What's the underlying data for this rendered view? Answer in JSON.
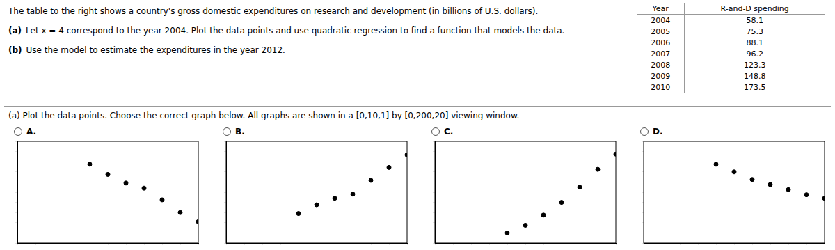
{
  "title": "The table to the right shows a country's gross domestic expenditures on research and development (in billions of U.S. dollars).",
  "annotations": [
    {
      "label": "(a)",
      "text": "Let x = 4 correspond to the year 2004. Plot the data points and use quadratic regression to find a function that models the data."
    },
    {
      "label": "(b)",
      "text": "Use the model to estimate the expenditures in the year 2012."
    },
    {
      "text": "(a) Plot the data points. Choose the correct graph below. All graphs are shown in a [0,10,1] by [0,200,20] viewing window."
    }
  ],
  "table": {
    "header": [
      "Year",
      "R-and-D spending"
    ],
    "rows": [
      [
        2004,
        58.1
      ],
      [
        2005,
        75.3
      ],
      [
        2006,
        88.1
      ],
      [
        2007,
        96.2
      ],
      [
        2008,
        123.3
      ],
      [
        2009,
        148.8
      ],
      [
        2010,
        173.5
      ]
    ]
  },
  "chart_data": [
    {
      "type": "scatter",
      "title": "A.",
      "x": [
        4,
        5,
        6,
        7,
        8,
        9,
        10
      ],
      "values": [
        155,
        135,
        118,
        108,
        85,
        60,
        42
      ],
      "color": "#000000",
      "marker": "circle",
      "xlim": [
        0,
        10
      ],
      "xticks": [
        0,
        1,
        2,
        3,
        4,
        5,
        6,
        7,
        8,
        9,
        10
      ],
      "ylim": [
        0,
        200
      ],
      "yticks": [
        0,
        20,
        40,
        60,
        80,
        100,
        120,
        140,
        160,
        180,
        200
      ],
      "grid": false,
      "tick_labels": false
    },
    {
      "type": "scatter",
      "title": "B.",
      "x": [
        4,
        5,
        6,
        7,
        8,
        9,
        10
      ],
      "values": [
        58.1,
        75.3,
        88.1,
        96.2,
        123.3,
        148.8,
        173.5
      ],
      "color": "#000000",
      "marker": "circle",
      "xlim": [
        0,
        10
      ],
      "xticks": [
        0,
        1,
        2,
        3,
        4,
        5,
        6,
        7,
        8,
        9,
        10
      ],
      "ylim": [
        0,
        200
      ],
      "yticks": [
        0,
        20,
        40,
        60,
        80,
        100,
        120,
        140,
        160,
        180,
        200
      ],
      "grid": false,
      "tick_labels": false
    },
    {
      "type": "scatter",
      "title": "C.",
      "x": [
        4,
        5,
        6,
        7,
        8,
        9,
        10
      ],
      "values": [
        20,
        35,
        55,
        80,
        110,
        145,
        175
      ],
      "color": "#000000",
      "marker": "circle",
      "xlim": [
        0,
        10
      ],
      "xticks": [
        0,
        1,
        2,
        3,
        4,
        5,
        6,
        7,
        8,
        9,
        10
      ],
      "ylim": [
        0,
        200
      ],
      "yticks": [
        0,
        20,
        40,
        60,
        80,
        100,
        120,
        140,
        160,
        180,
        200
      ],
      "grid": false,
      "tick_labels": false
    },
    {
      "type": "scatter",
      "title": "D.",
      "x": [
        4,
        5,
        6,
        7,
        8,
        9,
        10
      ],
      "values": [
        155,
        140,
        125,
        115,
        105,
        95,
        88
      ],
      "color": "#000000",
      "marker": "circle",
      "xlim": [
        0,
        10
      ],
      "xticks": [
        0,
        1,
        2,
        3,
        4,
        5,
        6,
        7,
        8,
        9,
        10
      ],
      "ylim": [
        0,
        200
      ],
      "yticks": [
        0,
        20,
        40,
        60,
        80,
        100,
        120,
        140,
        160,
        180,
        200
      ],
      "grid": false,
      "tick_labels": false
    }
  ]
}
